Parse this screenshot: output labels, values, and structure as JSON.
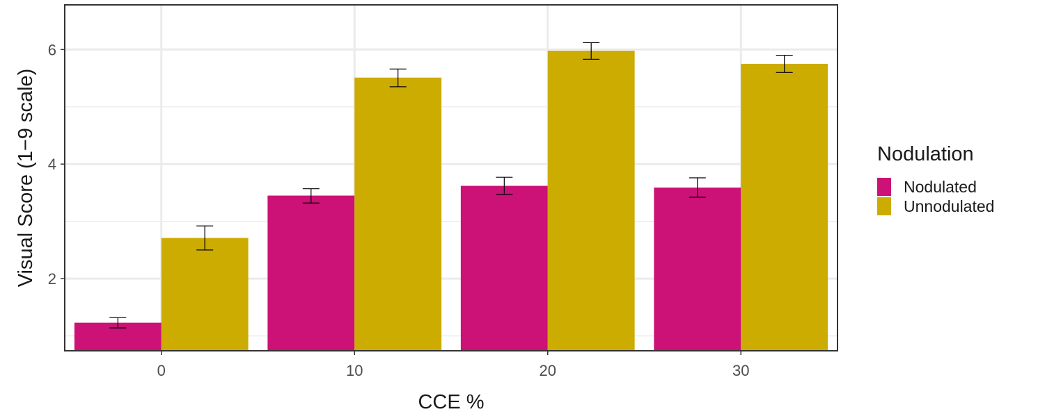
{
  "chart_data": {
    "type": "bar",
    "categories": [
      "0",
      "10",
      "20",
      "30"
    ],
    "series": [
      {
        "name": "Nodulated",
        "color": "#CC1177",
        "values": [
          1.23,
          3.45,
          3.62,
          3.59
        ],
        "error_low": [
          1.14,
          3.32,
          3.47,
          3.42
        ],
        "error_high": [
          1.32,
          3.57,
          3.77,
          3.76
        ]
      },
      {
        "name": "Unnodulated",
        "color": "#CCAC00",
        "values": [
          2.71,
          5.51,
          5.98,
          5.75
        ],
        "error_low": [
          2.5,
          5.35,
          5.83,
          5.6
        ],
        "error_high": [
          2.92,
          5.66,
          6.12,
          5.9
        ]
      }
    ],
    "xlabel": "CCE %",
    "ylabel": "Visual Score (1−9 scale)",
    "y_ticks": [
      2,
      4,
      6
    ],
    "ylim": [
      0.74,
      6.78
    ],
    "legend_title": "Nodulation",
    "legend_position": "right",
    "grid": true
  }
}
